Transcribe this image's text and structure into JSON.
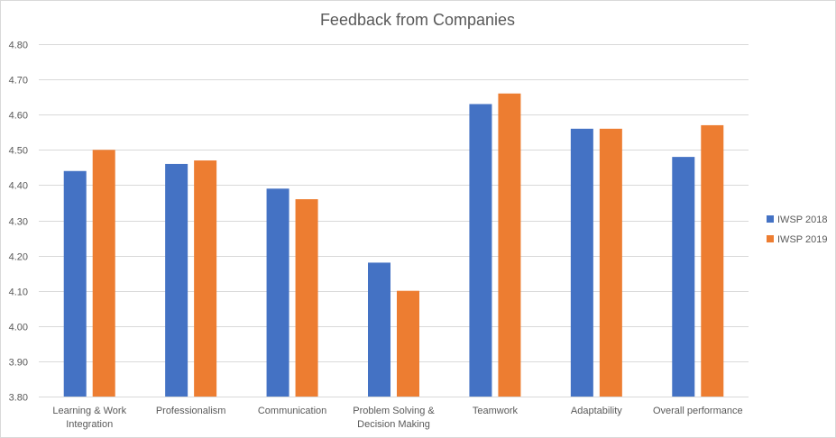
{
  "chart_data": {
    "type": "bar",
    "title": "Feedback from Companies",
    "xlabel": "",
    "ylabel": "",
    "ylim": [
      3.8,
      4.8
    ],
    "ytick_step": 0.1,
    "yticks": [
      "3.80",
      "3.90",
      "4.00",
      "4.10",
      "4.20",
      "4.30",
      "4.40",
      "4.50",
      "4.60",
      "4.70",
      "4.80"
    ],
    "grid": true,
    "legend_position": "right",
    "categories": [
      [
        "Learning & Work",
        "Integration"
      ],
      [
        "Professionalism"
      ],
      [
        "Communication"
      ],
      [
        "Problem Solving &",
        "Decision Making"
      ],
      [
        "Teamwork"
      ],
      [
        "Adaptability"
      ],
      [
        "Overall performance"
      ]
    ],
    "series": [
      {
        "name": "IWSP 2018",
        "color": "#4472C4",
        "values": [
          4.44,
          4.46,
          4.39,
          4.18,
          4.63,
          4.56,
          4.48
        ]
      },
      {
        "name": "IWSP 2019",
        "color": "#ED7D31",
        "values": [
          4.5,
          4.47,
          4.36,
          4.1,
          4.66,
          4.56,
          4.57
        ]
      }
    ]
  }
}
